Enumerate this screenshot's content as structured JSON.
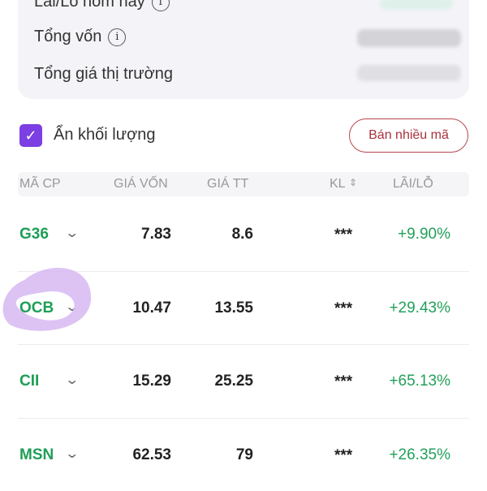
{
  "summary": {
    "today_pl_label": "Lãi/Lỗ hôm nay",
    "total_capital_label": "Tổng vốn",
    "market_value_label": "Tổng giá thị trường"
  },
  "hide_volume": {
    "label": "Ẩn khối lượng",
    "checked": true
  },
  "sell_multiple_label": "Bán nhiều mã",
  "columns": {
    "ticker": "MÃ CP",
    "cost": "GIÁ VỐN",
    "price": "GIÁ TT",
    "volume": "KL",
    "sort_icon": "⇕",
    "pl": "LÃI/LỖ"
  },
  "rows": [
    {
      "ticker": "G36",
      "cost": "7.83",
      "price": "8.6",
      "volume": "***",
      "pl": "+9.90%"
    },
    {
      "ticker": "OCB",
      "cost": "10.47",
      "price": "13.55",
      "volume": "***",
      "pl": "+29.43%"
    },
    {
      "ticker": "CII",
      "cost": "15.29",
      "price": "25.25",
      "volume": "***",
      "pl": "+65.13%"
    },
    {
      "ticker": "MSN",
      "cost": "62.53",
      "price": "79",
      "volume": "***",
      "pl": "+26.35%"
    }
  ],
  "colors": {
    "accent": "#7b3fe4",
    "gain": "#22a05a",
    "sell": "#a8323c",
    "highlight": "#d9bdf2"
  }
}
